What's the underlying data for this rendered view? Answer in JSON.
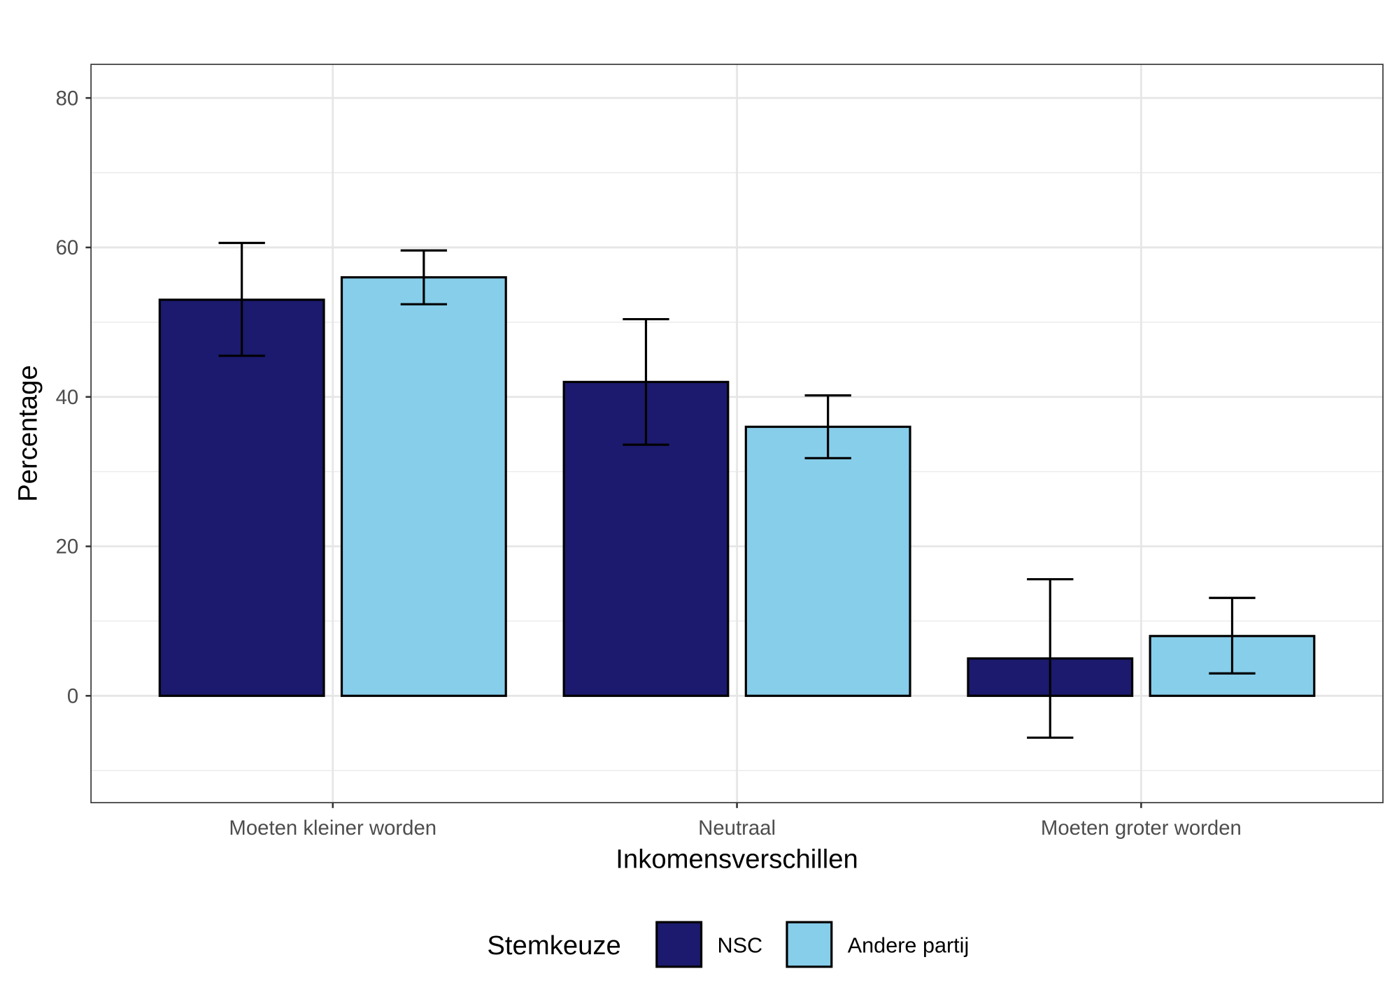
{
  "chart_data": {
    "type": "bar",
    "title": "",
    "xlabel": "Inkomensverschillen",
    "ylabel": "Percentage",
    "categories": [
      "Moeten kleiner worden",
      "Neutraal",
      "Moeten groter worden"
    ],
    "series": [
      {
        "name": "NSC",
        "color": "#1B1A6E",
        "values": [
          53.0,
          42.0,
          5.0
        ],
        "error_low": [
          45.5,
          33.6,
          -5.6
        ],
        "error_high": [
          60.6,
          50.4,
          15.6
        ]
      },
      {
        "name": "Andere partij",
        "color": "#87CEEA",
        "values": [
          56.0,
          36.0,
          8.0
        ],
        "error_low": [
          52.4,
          31.8,
          3.0
        ],
        "error_high": [
          59.6,
          40.2,
          13.1
        ]
      }
    ],
    "ylim": [
      -14.3,
      84.5
    ],
    "yticks": [
      0,
      20,
      40,
      60,
      80
    ],
    "grid": true,
    "legend": {
      "title": "Stemkeuze",
      "position": "bottom"
    }
  }
}
